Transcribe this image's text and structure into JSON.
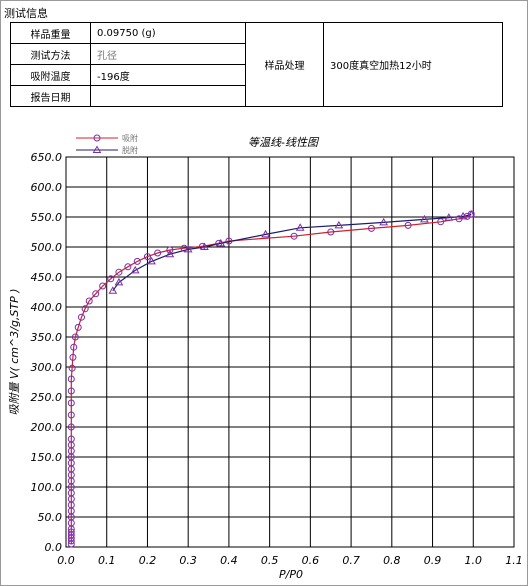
{
  "section_title": "测试信息",
  "info": {
    "weight_label": "样品重量",
    "weight_value": "0.09750 (g)",
    "method_label": "测试方法",
    "method_value": "孔径",
    "temp_label": "吸附温度",
    "temp_value": "-196度",
    "date_label": "报告日期",
    "date_value": "",
    "treat_label": "样品处理",
    "treat_value": "300度真空加热12小时"
  },
  "colors": {
    "adsorption": "#d0202c",
    "desorption": "#1c1c6c",
    "marker": "#7b2ca8",
    "grid": "#000000"
  },
  "chart_data": {
    "type": "line",
    "title": "等温线-线性图",
    "xlabel": "P/P0",
    "ylabel": "吸附量 V( cm^3/g,STP )",
    "xlim": [
      0.0,
      1.1
    ],
    "ylim": [
      0.0,
      650.0
    ],
    "x_ticks": [
      "0.0",
      "0.1",
      "0.2",
      "0.3",
      "0.4",
      "0.5",
      "0.6",
      "0.7",
      "0.8",
      "0.9",
      "1.0",
      "1.1"
    ],
    "y_ticks": [
      "0.0",
      "50.0",
      "100.0",
      "150.0",
      "200.0",
      "250.0",
      "300.0",
      "350.0",
      "400.0",
      "450.0",
      "500.0",
      "550.0",
      "600.0",
      "650.0"
    ],
    "legend_position": "top-left",
    "series": [
      {
        "name": "吸附",
        "marker": "circle",
        "x": [
          0.013,
          0.013,
          0.013,
          0.013,
          0.013,
          0.013,
          0.013,
          0.013,
          0.013,
          0.013,
          0.013,
          0.013,
          0.013,
          0.013,
          0.013,
          0.013,
          0.013,
          0.013,
          0.013,
          0.013,
          0.013,
          0.013,
          0.013,
          0.013,
          0.013,
          0.013,
          0.015,
          0.017,
          0.019,
          0.023,
          0.03,
          0.038,
          0.047,
          0.057,
          0.073,
          0.09,
          0.11,
          0.13,
          0.152,
          0.175,
          0.2,
          0.225,
          0.255,
          0.29,
          0.335,
          0.375,
          0.4,
          0.56,
          0.65,
          0.75,
          0.84,
          0.92,
          0.965,
          0.985,
          0.995
        ],
        "y": [
          5,
          10,
          15,
          20,
          25,
          30,
          40,
          50,
          60,
          70,
          80,
          90,
          100,
          110,
          120,
          130,
          140,
          150,
          160,
          170,
          180,
          200,
          220,
          240,
          260,
          280,
          298,
          316,
          333,
          350,
          366,
          383,
          397,
          410,
          422,
          435,
          447,
          458,
          467,
          476,
          484,
          490,
          495,
          498,
          501,
          506,
          510,
          518,
          525,
          531,
          536,
          542,
          547,
          551,
          555
        ]
      },
      {
        "name": "脱附",
        "marker": "triangle",
        "x": [
          0.995,
          0.975,
          0.94,
          0.88,
          0.78,
          0.67,
          0.575,
          0.49,
          0.38,
          0.34,
          0.3,
          0.255,
          0.21,
          0.17,
          0.13,
          0.115
        ],
        "y": [
          554,
          551,
          549,
          546,
          541,
          536,
          532,
          521,
          506,
          500,
          496,
          488,
          476,
          461,
          441,
          427
        ]
      }
    ]
  }
}
